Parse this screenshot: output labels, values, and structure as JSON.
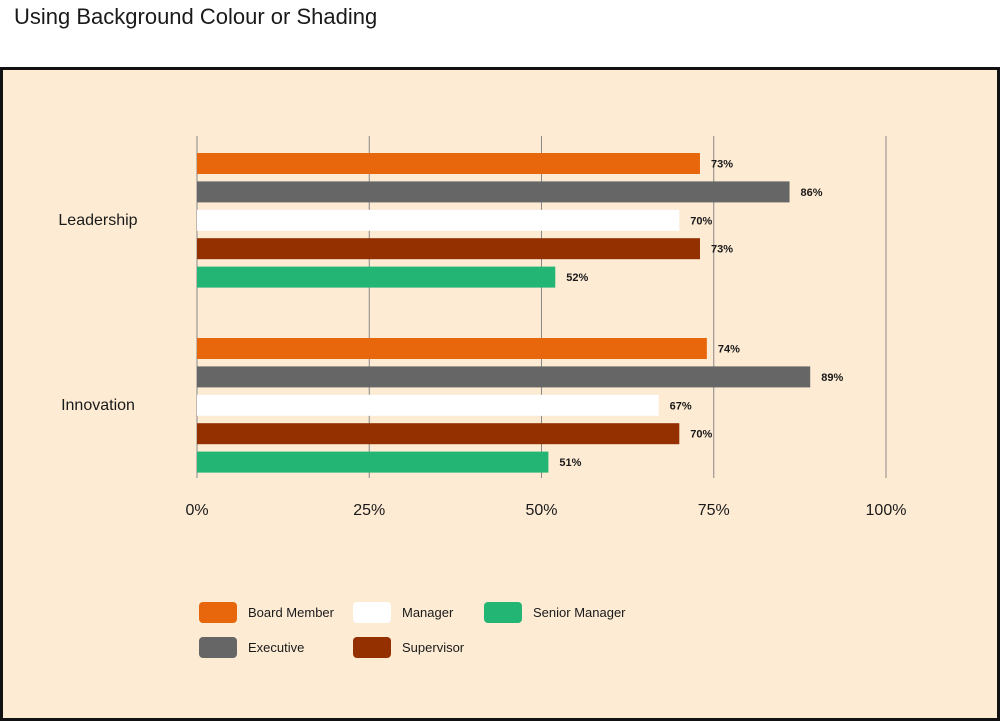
{
  "page": {
    "title": "Using Background Colour or Shading"
  },
  "colors": {
    "panel_bg": "#fdebd4",
    "grid": "#888888"
  },
  "chart_data": {
    "type": "bar",
    "orientation": "horizontal",
    "title": "",
    "xlabel": "",
    "ylabel": "",
    "categories": [
      "Leadership",
      "Innovation"
    ],
    "xlim": [
      0,
      100
    ],
    "x_ticks": [
      "0%",
      "25%",
      "50%",
      "75%",
      "100%"
    ],
    "grid": true,
    "legend_position": "bottom",
    "series": [
      {
        "name": "Board Member",
        "color": "#e8670c",
        "values": [
          73,
          74
        ],
        "labels": [
          "73%",
          "74%"
        ]
      },
      {
        "name": "Executive",
        "color": "#666666",
        "values": [
          86,
          89
        ],
        "labels": [
          "86%",
          "89%"
        ]
      },
      {
        "name": "Manager",
        "color": "#ffffff",
        "values": [
          70,
          67
        ],
        "labels": [
          "70%",
          "67%"
        ]
      },
      {
        "name": "Supervisor",
        "color": "#942f00",
        "values": [
          73,
          70
        ],
        "labels": [
          "73%",
          "70%"
        ]
      },
      {
        "name": "Senior Manager",
        "color": "#22b573",
        "values": [
          52,
          51
        ],
        "labels": [
          "52%",
          "51%"
        ]
      }
    ],
    "legend_order": [
      "Board Member",
      "Manager",
      "Senior Manager",
      "Executive",
      "Supervisor"
    ]
  }
}
